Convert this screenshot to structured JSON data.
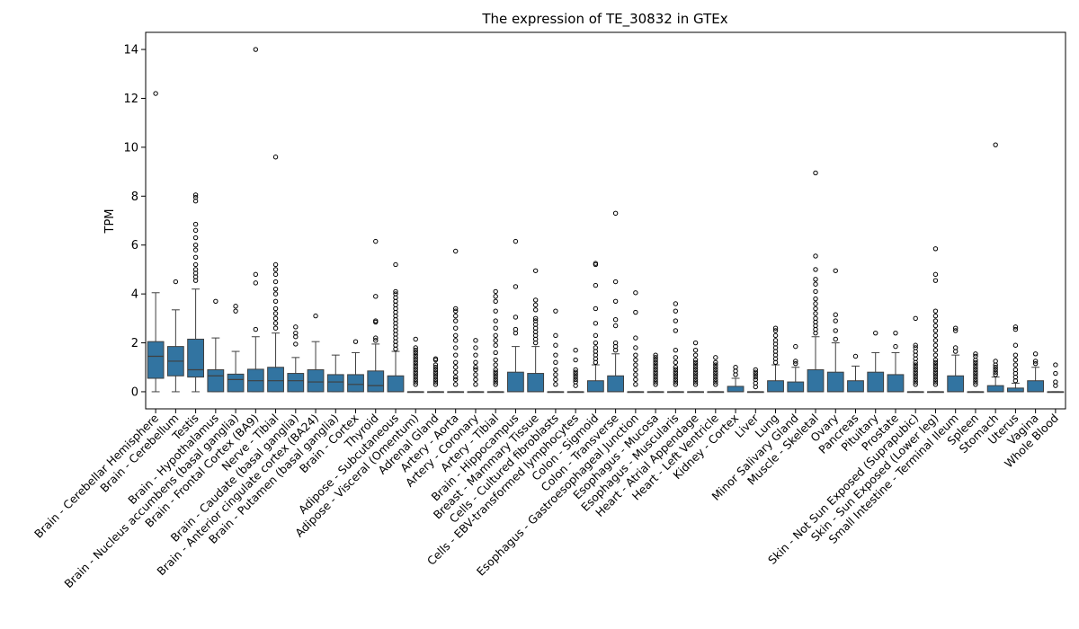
{
  "chart_data": {
    "type": "box",
    "title": "The expression of TE_30832 in GTEx",
    "xlabel": "",
    "ylabel": "TPM",
    "ylim": [
      -0.7,
      14.7
    ],
    "yticks": [
      0,
      2,
      4,
      6,
      8,
      10,
      12,
      14
    ],
    "grid": false,
    "box_color": "#3274a1",
    "tissues": [
      {
        "name": "Brain - Cerebellar Hemisphere",
        "q1": 0.55,
        "median": 1.45,
        "q3": 2.05,
        "wlo": 0.0,
        "whi": 4.05,
        "outliers": [
          12.2
        ]
      },
      {
        "name": "Brain - Cerebellum",
        "q1": 0.65,
        "median": 1.25,
        "q3": 1.85,
        "wlo": 0.0,
        "whi": 3.35,
        "outliers": [
          4.5
        ]
      },
      {
        "name": "Testis",
        "q1": 0.6,
        "median": 0.9,
        "q3": 2.15,
        "wlo": 0.0,
        "whi": 4.2,
        "outliers": [
          4.55,
          4.7,
          4.85,
          5.0,
          5.2,
          5.5,
          5.8,
          6.0,
          6.3,
          6.6,
          6.85,
          7.8,
          7.95,
          8.05
        ]
      },
      {
        "name": "Brain - Hypothalamus",
        "q1": 0.0,
        "median": 0.65,
        "q3": 0.9,
        "wlo": 0.0,
        "whi": 2.2,
        "outliers": [
          3.7
        ]
      },
      {
        "name": "Brain - Nucleus accumbens (basal ganglia)",
        "q1": 0.0,
        "median": 0.5,
        "q3": 0.72,
        "wlo": 0.0,
        "whi": 1.65,
        "outliers": [
          3.3,
          3.5
        ]
      },
      {
        "name": "Brain - Frontal Cortex (BA9)",
        "q1": 0.0,
        "median": 0.45,
        "q3": 0.92,
        "wlo": 0.0,
        "whi": 2.25,
        "outliers": [
          2.55,
          4.45,
          4.8,
          14.0
        ]
      },
      {
        "name": "Nerve - Tibial",
        "q1": 0.0,
        "median": 0.45,
        "q3": 1.0,
        "wlo": 0.0,
        "whi": 2.4,
        "outliers": [
          2.6,
          2.8,
          3.0,
          3.2,
          3.4,
          3.7,
          4.0,
          4.2,
          4.5,
          4.8,
          5.0,
          5.2,
          9.6
        ]
      },
      {
        "name": "Brain - Caudate (basal ganglia)",
        "q1": 0.0,
        "median": 0.45,
        "q3": 0.75,
        "wlo": 0.0,
        "whi": 1.4,
        "outliers": [
          1.95,
          2.25,
          2.4,
          2.65
        ]
      },
      {
        "name": "Brain - Anterior cingulate cortex (BA24)",
        "q1": 0.0,
        "median": 0.4,
        "q3": 0.9,
        "wlo": 0.0,
        "whi": 2.05,
        "outliers": [
          3.1
        ]
      },
      {
        "name": "Brain - Putamen (basal ganglia)",
        "q1": 0.0,
        "median": 0.4,
        "q3": 0.7,
        "wlo": 0.0,
        "whi": 1.5,
        "outliers": []
      },
      {
        "name": "Brain - Cortex",
        "q1": 0.0,
        "median": 0.3,
        "q3": 0.7,
        "wlo": 0.0,
        "whi": 1.6,
        "outliers": [
          2.05
        ]
      },
      {
        "name": "Thyroid",
        "q1": 0.0,
        "median": 0.25,
        "q3": 0.85,
        "wlo": 0.0,
        "whi": 1.95,
        "outliers": [
          2.1,
          2.2,
          2.85,
          2.9,
          3.9,
          6.15
        ]
      },
      {
        "name": "Adipose - Subcutaneous",
        "q1": 0.0,
        "median": 0.0,
        "q3": 0.65,
        "wlo": 0.0,
        "whi": 1.65,
        "outliers": [
          1.75,
          1.9,
          2.05,
          2.2,
          2.35,
          2.5,
          2.65,
          2.8,
          2.95,
          3.1,
          3.25,
          3.4,
          3.55,
          3.7,
          3.85,
          4.0,
          4.1,
          5.2
        ]
      },
      {
        "name": "Adipose - Visceral (Omentum)",
        "q1": 0.0,
        "median": 0.0,
        "q3": 0.0,
        "wlo": 0.0,
        "whi": 0.0,
        "outliers": [
          0.3,
          0.4,
          0.5,
          0.6,
          0.7,
          0.8,
          0.9,
          1.0,
          1.1,
          1.2,
          1.3,
          1.4,
          1.5,
          1.6,
          1.7,
          1.8,
          2.15
        ]
      },
      {
        "name": "Adrenal Gland",
        "q1": 0.0,
        "median": 0.0,
        "q3": 0.0,
        "wlo": 0.0,
        "whi": 0.0,
        "outliers": [
          0.3,
          0.4,
          0.5,
          0.6,
          0.7,
          0.8,
          0.9,
          1.0,
          1.1,
          1.3,
          1.35
        ]
      },
      {
        "name": "Artery - Aorta",
        "q1": 0.0,
        "median": 0.0,
        "q3": 0.0,
        "wlo": 0.0,
        "whi": 0.0,
        "outliers": [
          0.3,
          0.5,
          0.6,
          0.8,
          1.0,
          1.2,
          1.5,
          1.8,
          2.1,
          2.3,
          2.6,
          2.9,
          3.1,
          3.3,
          3.4,
          5.75
        ]
      },
      {
        "name": "Artery - Coronary",
        "q1": 0.0,
        "median": 0.0,
        "q3": 0.0,
        "wlo": 0.0,
        "whi": 0.0,
        "outliers": [
          0.3,
          0.5,
          0.7,
          0.9,
          1.0,
          1.2,
          1.5,
          1.8,
          2.1
        ]
      },
      {
        "name": "Artery - Tibial",
        "q1": 0.0,
        "median": 0.0,
        "q3": 0.0,
        "wlo": 0.0,
        "whi": 0.0,
        "outliers": [
          0.3,
          0.4,
          0.5,
          0.6,
          0.7,
          0.8,
          0.9,
          1.1,
          1.3,
          1.6,
          1.9,
          2.1,
          2.3,
          2.6,
          2.9,
          3.3,
          3.7,
          3.9,
          4.1
        ]
      },
      {
        "name": "Brain - Hippocampus",
        "q1": 0.0,
        "median": 0.0,
        "q3": 0.8,
        "wlo": 0.0,
        "whi": 1.85,
        "outliers": [
          2.4,
          2.55,
          3.05,
          4.3,
          6.15
        ]
      },
      {
        "name": "Breast - Mammary Tissue",
        "q1": 0.0,
        "median": 0.0,
        "q3": 0.75,
        "wlo": 0.0,
        "whi": 1.85,
        "outliers": [
          2.0,
          2.15,
          2.3,
          2.45,
          2.6,
          2.75,
          2.9,
          3.0,
          3.35,
          3.55,
          3.75,
          4.95
        ]
      },
      {
        "name": "Cells - Cultured fibroblasts",
        "q1": 0.0,
        "median": 0.0,
        "q3": 0.0,
        "wlo": 0.0,
        "whi": 0.0,
        "outliers": [
          0.3,
          0.5,
          0.7,
          0.9,
          1.2,
          1.5,
          1.9,
          2.3,
          3.3
        ]
      },
      {
        "name": "Cells - EBV-transformed lymphocytes",
        "q1": 0.0,
        "median": 0.0,
        "q3": 0.0,
        "wlo": 0.0,
        "whi": 0.0,
        "outliers": [
          0.25,
          0.4,
          0.5,
          0.6,
          0.7,
          0.8,
          0.9,
          1.3,
          1.7
        ]
      },
      {
        "name": "Colon - Sigmoid",
        "q1": 0.0,
        "median": 0.0,
        "q3": 0.45,
        "wlo": 0.0,
        "whi": 1.1,
        "outliers": [
          1.2,
          1.35,
          1.5,
          1.65,
          1.8,
          2.0,
          2.3,
          2.8,
          3.4,
          4.35,
          5.2,
          5.25
        ]
      },
      {
        "name": "Colon - Transverse",
        "q1": 0.0,
        "median": 0.0,
        "q3": 0.65,
        "wlo": 0.0,
        "whi": 1.55,
        "outliers": [
          1.7,
          1.85,
          2.0,
          2.7,
          2.95,
          3.7,
          4.5,
          7.3
        ]
      },
      {
        "name": "Esophagus - Gastroesophageal Junction",
        "q1": 0.0,
        "median": 0.0,
        "q3": 0.0,
        "wlo": 0.0,
        "whi": 0.0,
        "outliers": [
          0.3,
          0.5,
          0.7,
          0.9,
          1.1,
          1.3,
          1.5,
          1.8,
          2.2,
          3.25,
          4.05
        ]
      },
      {
        "name": "Esophagus - Mucosa",
        "q1": 0.0,
        "median": 0.0,
        "q3": 0.0,
        "wlo": 0.0,
        "whi": 0.0,
        "outliers": [
          0.3,
          0.4,
          0.5,
          0.6,
          0.7,
          0.8,
          0.9,
          1.0,
          1.1,
          1.2,
          1.3,
          1.4,
          1.5
        ]
      },
      {
        "name": "Esophagus - Muscularis",
        "q1": 0.0,
        "median": 0.0,
        "q3": 0.0,
        "wlo": 0.0,
        "whi": 0.0,
        "outliers": [
          0.3,
          0.4,
          0.5,
          0.6,
          0.7,
          0.8,
          0.9,
          1.0,
          1.2,
          1.4,
          1.7,
          2.5,
          2.9,
          3.3,
          3.6
        ]
      },
      {
        "name": "Heart - Atrial Appendage",
        "q1": 0.0,
        "median": 0.0,
        "q3": 0.0,
        "wlo": 0.0,
        "whi": 0.0,
        "outliers": [
          0.3,
          0.4,
          0.5,
          0.6,
          0.7,
          0.8,
          0.9,
          1.0,
          1.1,
          1.2,
          1.3,
          1.5,
          1.7,
          2.0
        ]
      },
      {
        "name": "Heart - Left Ventricle",
        "q1": 0.0,
        "median": 0.0,
        "q3": 0.0,
        "wlo": 0.0,
        "whi": 0.0,
        "outliers": [
          0.3,
          0.4,
          0.5,
          0.6,
          0.7,
          0.8,
          0.9,
          1.0,
          1.1,
          1.2,
          1.4
        ]
      },
      {
        "name": "Kidney - Cortex",
        "q1": 0.0,
        "median": 0.0,
        "q3": 0.22,
        "wlo": 0.0,
        "whi": 0.55,
        "outliers": [
          0.7,
          0.85,
          1.0
        ]
      },
      {
        "name": "Liver",
        "q1": 0.0,
        "median": 0.0,
        "q3": 0.0,
        "wlo": 0.0,
        "whi": 0.0,
        "outliers": [
          0.2,
          0.35,
          0.5,
          0.6,
          0.7,
          0.8,
          0.9
        ]
      },
      {
        "name": "Lung",
        "q1": 0.0,
        "median": 0.0,
        "q3": 0.45,
        "wlo": 0.0,
        "whi": 1.1,
        "outliers": [
          1.2,
          1.35,
          1.5,
          1.65,
          1.8,
          1.95,
          2.1,
          2.3,
          2.5,
          2.6
        ]
      },
      {
        "name": "Minor Salivary Gland",
        "q1": 0.0,
        "median": 0.0,
        "q3": 0.4,
        "wlo": 0.0,
        "whi": 1.0,
        "outliers": [
          1.15,
          1.25,
          1.85
        ]
      },
      {
        "name": "Muscle - Skeletal",
        "q1": 0.0,
        "median": 0.0,
        "q3": 0.9,
        "wlo": 0.0,
        "whi": 2.25,
        "outliers": [
          2.4,
          2.55,
          2.7,
          2.85,
          3.0,
          3.2,
          3.4,
          3.6,
          3.8,
          4.1,
          4.4,
          4.6,
          5.0,
          5.55,
          8.95
        ]
      },
      {
        "name": "Ovary",
        "q1": 0.0,
        "median": 0.0,
        "q3": 0.8,
        "wlo": 0.0,
        "whi": 2.0,
        "outliers": [
          2.15,
          2.5,
          2.9,
          3.15,
          4.95
        ]
      },
      {
        "name": "Pancreas",
        "q1": 0.0,
        "median": 0.0,
        "q3": 0.45,
        "wlo": 0.0,
        "whi": 1.05,
        "outliers": [
          1.45
        ]
      },
      {
        "name": "Pituitary",
        "q1": 0.0,
        "median": 0.0,
        "q3": 0.8,
        "wlo": 0.0,
        "whi": 1.6,
        "outliers": [
          2.4
        ]
      },
      {
        "name": "Prostate",
        "q1": 0.0,
        "median": 0.0,
        "q3": 0.7,
        "wlo": 0.0,
        "whi": 1.6,
        "outliers": [
          1.85,
          2.4
        ]
      },
      {
        "name": "Skin - Not Sun Exposed (Suprapubic)",
        "q1": 0.0,
        "median": 0.0,
        "q3": 0.0,
        "wlo": 0.0,
        "whi": 0.0,
        "outliers": [
          0.3,
          0.4,
          0.5,
          0.6,
          0.7,
          0.8,
          0.9,
          1.0,
          1.1,
          1.2,
          1.35,
          1.5,
          1.65,
          1.8,
          1.9,
          3.0
        ]
      },
      {
        "name": "Skin - Sun Exposed (Lower leg)",
        "q1": 0.0,
        "median": 0.0,
        "q3": 0.0,
        "wlo": 0.0,
        "whi": 0.0,
        "outliers": [
          0.3,
          0.4,
          0.5,
          0.6,
          0.7,
          0.8,
          0.9,
          1.0,
          1.1,
          1.2,
          1.3,
          1.5,
          1.7,
          1.9,
          2.1,
          2.3,
          2.5,
          2.7,
          2.9,
          3.1,
          3.3,
          4.55,
          4.8,
          5.85
        ]
      },
      {
        "name": "Small Intestine - Terminal Ileum",
        "q1": 0.0,
        "median": 0.0,
        "q3": 0.65,
        "wlo": 0.0,
        "whi": 1.5,
        "outliers": [
          1.65,
          1.8,
          2.5,
          2.6
        ]
      },
      {
        "name": "Spleen",
        "q1": 0.0,
        "median": 0.0,
        "q3": 0.0,
        "wlo": 0.0,
        "whi": 0.0,
        "outliers": [
          0.3,
          0.4,
          0.5,
          0.6,
          0.7,
          0.8,
          0.9,
          1.0,
          1.1,
          1.2,
          1.3,
          1.45,
          1.55
        ]
      },
      {
        "name": "Stomach",
        "q1": 0.0,
        "median": 0.0,
        "q3": 0.25,
        "wlo": 0.0,
        "whi": 0.6,
        "outliers": [
          0.7,
          0.8,
          0.9,
          1.0,
          1.1,
          1.25,
          10.1
        ]
      },
      {
        "name": "Uterus",
        "q1": 0.0,
        "median": 0.0,
        "q3": 0.15,
        "wlo": 0.0,
        "whi": 0.35,
        "outliers": [
          0.45,
          0.6,
          0.75,
          0.9,
          1.1,
          1.3,
          1.5,
          1.9,
          2.55,
          2.65
        ]
      },
      {
        "name": "Vagina",
        "q1": 0.0,
        "median": 0.0,
        "q3": 0.45,
        "wlo": 0.0,
        "whi": 1.0,
        "outliers": [
          1.15,
          1.25,
          1.55
        ]
      },
      {
        "name": "Whole Blood",
        "q1": 0.0,
        "median": 0.0,
        "q3": 0.0,
        "wlo": 0.0,
        "whi": 0.0,
        "outliers": [
          0.25,
          0.4,
          0.75,
          1.1
        ]
      }
    ]
  }
}
